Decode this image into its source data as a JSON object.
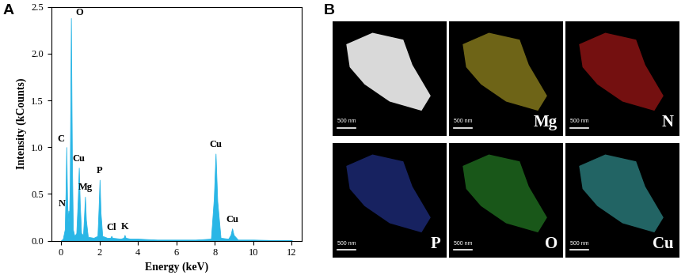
{
  "chart_data": {
    "type": "area",
    "panel": "A",
    "x_label": "Energy (keV)",
    "y_label": "Intensity (kCounts)",
    "color": "#29b6e6",
    "x": [
      0.0,
      0.1,
      0.2,
      0.24,
      0.28,
      0.32,
      0.36,
      0.39,
      0.42,
      0.46,
      0.52,
      0.57,
      0.62,
      0.7,
      0.8,
      0.88,
      0.93,
      0.98,
      1.05,
      1.15,
      1.2,
      1.25,
      1.3,
      1.4,
      1.7,
      1.9,
      1.96,
      2.01,
      2.06,
      2.15,
      2.4,
      2.57,
      2.62,
      2.67,
      3.1,
      3.26,
      3.31,
      3.36,
      3.6,
      4.0,
      5.0,
      6.0,
      7.0,
      7.8,
      7.95,
      8.04,
      8.13,
      8.3,
      8.7,
      8.82,
      8.9,
      8.98,
      9.2,
      10.0,
      11.0,
      12.0
    ],
    "values": [
      0,
      0.02,
      0.12,
      0.5,
      1.0,
      0.45,
      0.2,
      0.32,
      0.2,
      0.6,
      2.38,
      0.9,
      0.12,
      0.05,
      0.08,
      0.45,
      0.78,
      0.4,
      0.08,
      0.06,
      0.25,
      0.47,
      0.22,
      0.04,
      0.03,
      0.05,
      0.35,
      0.65,
      0.3,
      0.05,
      0.03,
      0.03,
      0.05,
      0.03,
      0.02,
      0.03,
      0.06,
      0.03,
      0.02,
      0.02,
      0.01,
      0.01,
      0.01,
      0.02,
      0.45,
      0.93,
      0.42,
      0.03,
      0.02,
      0.06,
      0.13,
      0.06,
      0.01,
      0.01,
      0.005,
      0.005
    ],
    "xlim": [
      -0.5,
      12.5
    ],
    "xticks": [
      0,
      2,
      4,
      6,
      8,
      10,
      12
    ],
    "ylim": [
      0,
      2.5
    ],
    "yticks": [
      {
        "value": 0,
        "label": "0.0"
      },
      {
        "value": 0.5,
        "label": "0.5"
      },
      {
        "value": 1.0,
        "label": "1.0"
      },
      {
        "value": 1.5,
        "label": "1.5"
      },
      {
        "value": 2.0,
        "label": "2.0"
      },
      {
        "value": 2.5,
        "label": "2.5"
      }
    ],
    "annotations": [
      {
        "text": "O",
        "x": 0.52,
        "y": 2.38
      },
      {
        "text": "C",
        "x": 0.28,
        "y": 1.0
      },
      {
        "text": "N",
        "x": 0.39,
        "y": 0.32
      },
      {
        "text": "Cu",
        "x": 0.93,
        "y": 0.78
      },
      {
        "text": "Mg",
        "x": 1.25,
        "y": 0.47
      },
      {
        "text": "P",
        "x": 2.01,
        "y": 0.65
      },
      {
        "text": "Cl",
        "x": 2.62,
        "y": 0.05
      },
      {
        "text": "K",
        "x": 3.31,
        "y": 0.06
      },
      {
        "text": "Cu",
        "x": 8.04,
        "y": 0.93
      },
      {
        "text": "Cu",
        "x": 8.9,
        "y": 0.13
      }
    ]
  },
  "image_panel": {
    "label": "B",
    "scale_bar": "500 nm",
    "maps": [
      {
        "color": "#e6e6e6"
      },
      {
        "name": "Mg",
        "color": "#c9b82a"
      },
      {
        "name": "N",
        "color": "#d41e1e"
      },
      {
        "name": "P",
        "color": "#2a3fb0"
      },
      {
        "name": "O",
        "color": "#2fa02f"
      },
      {
        "name": "Cu",
        "color": "#3fb8b8"
      }
    ]
  }
}
